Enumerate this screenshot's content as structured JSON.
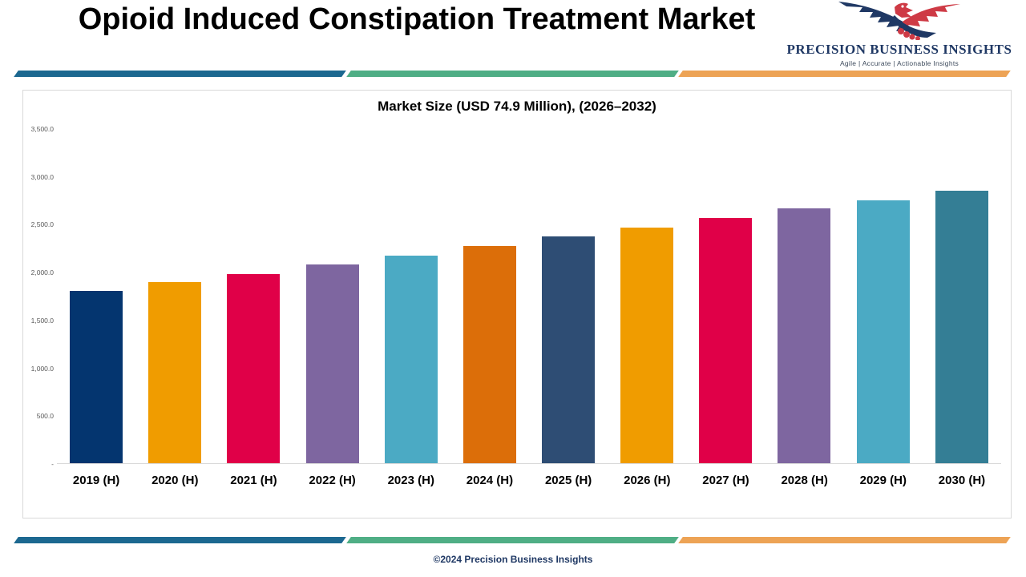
{
  "header": {
    "title": "Opioid Induced Constipation Treatment Market",
    "logo": {
      "name": "PRECISION BUSINESS INSIGHTS",
      "tagline": "Agile | Accurate | Actionable Insights",
      "navy": "#1f3864",
      "red": "#ce3a45"
    }
  },
  "divider_colors": [
    "#1c6890",
    "#4fae85",
    "#eda355"
  ],
  "chart_data": {
    "type": "bar",
    "title": "Market Size (USD 74.9 Million), (2026–2032)",
    "categories": [
      "2019 (H)",
      "2020 (H)",
      "2021 (H)",
      "2022 (H)",
      "2023 (H)",
      "2024 (H)",
      "2025 (H)",
      "2026 (H)",
      "2027 (H)",
      "2028 (H)",
      "2029 (H)",
      "2030 (H)"
    ],
    "values": [
      1800,
      1890,
      1980,
      2080,
      2170,
      2270,
      2370,
      2460,
      2560,
      2660,
      2750,
      2850
    ],
    "bar_colors": [
      "#04356f",
      "#f09c00",
      "#e00048",
      "#7e66a0",
      "#4baac4",
      "#dc6e09",
      "#2e4d74",
      "#f09c00",
      "#e00048",
      "#7e66a0",
      "#4baac4",
      "#347e95"
    ],
    "ylim": [
      0,
      3500
    ],
    "ytick_labels": [
      "3,500.0",
      "3,000.0",
      "2,500.0",
      "2,000.0",
      "1,500.0",
      "1,000.0",
      "500.0",
      "-"
    ],
    "xlabel": "",
    "ylabel": "",
    "grid": false,
    "legend": false
  },
  "footer": {
    "copyright": "©2024 Precision Business Insights"
  }
}
